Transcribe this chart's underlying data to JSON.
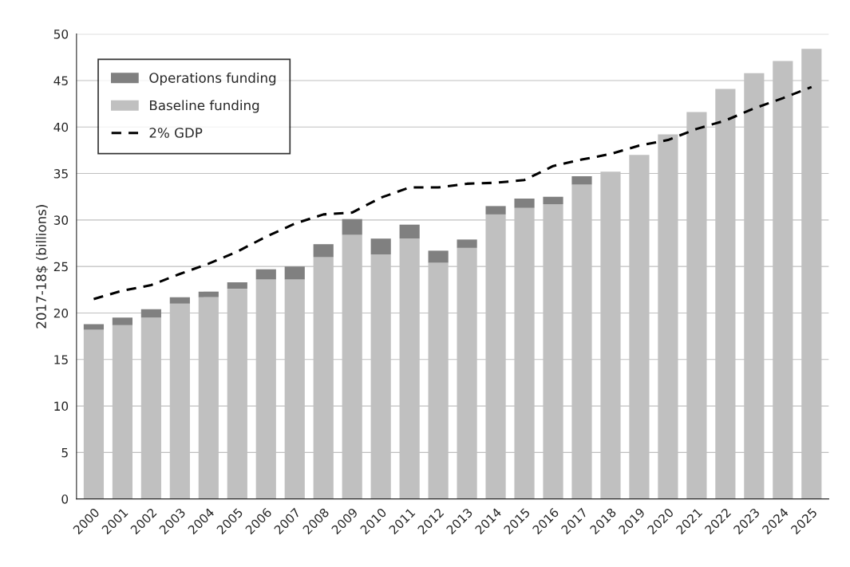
{
  "chart_data": {
    "type": "bar",
    "ylabel": "2017-18$ (billions)",
    "stacked": true,
    "categories": [
      "2000",
      "2001",
      "2002",
      "2003",
      "2004",
      "2005",
      "2006",
      "2007",
      "2008",
      "2009",
      "2010",
      "2011",
      "2012",
      "2013",
      "2014",
      "2015",
      "2016",
      "2017",
      "2018",
      "2019",
      "2020",
      "2021",
      "2022",
      "2023",
      "2024",
      "2025"
    ],
    "series": [
      {
        "name": "Baseline funding",
        "color": "#c0c0c0",
        "values": [
          18.2,
          18.7,
          19.5,
          21.0,
          21.7,
          22.6,
          23.6,
          23.6,
          26.0,
          28.4,
          26.3,
          28.0,
          25.4,
          27.0,
          30.6,
          31.3,
          31.7,
          33.8,
          35.2,
          37.0,
          39.2,
          41.6,
          44.1,
          45.8,
          47.1,
          48.4
        ]
      },
      {
        "name": "Operations funding",
        "color": "#808080",
        "values": [
          0.6,
          0.8,
          0.9,
          0.7,
          0.6,
          0.7,
          1.1,
          1.4,
          1.4,
          1.7,
          1.7,
          1.5,
          1.3,
          0.9,
          0.9,
          1.0,
          0.8,
          0.9,
          null,
          null,
          null,
          null,
          null,
          null,
          null,
          null
        ]
      },
      {
        "name": "2% GDP",
        "type": "line",
        "color": "#000000",
        "line_style": "dashed",
        "values": [
          21.5,
          22.4,
          23.0,
          24.2,
          25.3,
          26.6,
          28.2,
          29.6,
          30.6,
          30.8,
          32.4,
          33.5,
          33.5,
          33.9,
          34.0,
          34.3,
          35.8,
          36.5,
          37.1,
          38.0,
          38.6,
          39.8,
          40.7,
          42.0,
          43.1,
          44.3
        ]
      }
    ],
    "ylim": [
      0,
      50
    ],
    "yticks": [
      0,
      5,
      10,
      15,
      20,
      25,
      30,
      35,
      40,
      45,
      50
    ],
    "grid": "y",
    "legend": "top left"
  }
}
